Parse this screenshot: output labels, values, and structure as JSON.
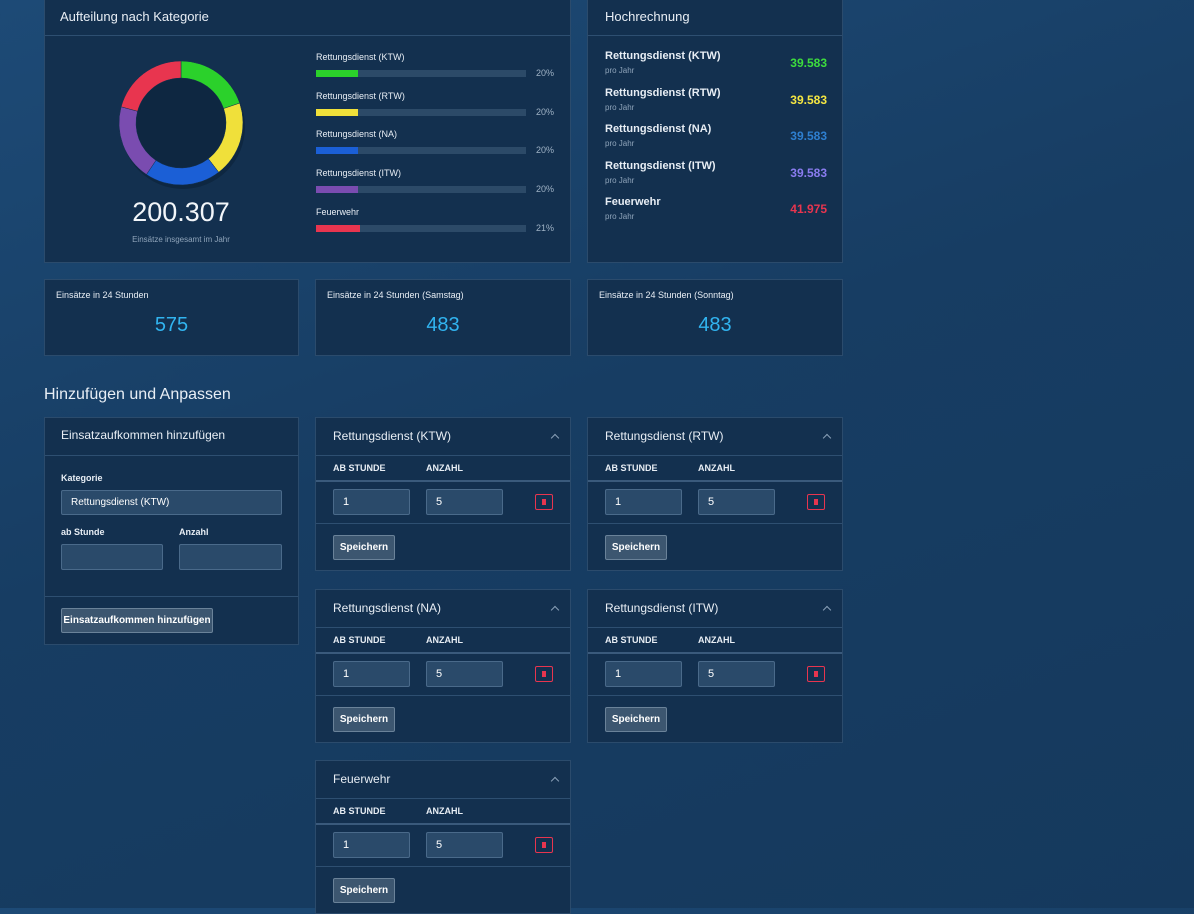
{
  "category_panel": {
    "title": "Aufteilung nach Kategorie",
    "total": "200.307",
    "total_caption": "Einsätze insgesamt im Jahr",
    "items": [
      {
        "name": "Rettungsdienst (KTW)",
        "percent": 20,
        "percent_label": "20%",
        "color": "#2bd12b"
      },
      {
        "name": "Rettungsdienst (RTW)",
        "percent": 20,
        "percent_label": "20%",
        "color": "#f0e03a"
      },
      {
        "name": "Rettungsdienst (NA)",
        "percent": 20,
        "percent_label": "20%",
        "color": "#1b5fd6"
      },
      {
        "name": "Rettungsdienst (ITW)",
        "percent": 20,
        "percent_label": "20%",
        "color": "#7a4cb0"
      },
      {
        "name": "Feuerwehr",
        "percent": 21,
        "percent_label": "21%",
        "color": "#e8354f"
      }
    ]
  },
  "projection_panel": {
    "title": "Hochrechnung",
    "rows": [
      {
        "name": "Rettungsdienst (KTW)",
        "sub": "pro Jahr",
        "value": "39.583",
        "color": "#3ddc3d"
      },
      {
        "name": "Rettungsdienst (RTW)",
        "sub": "pro Jahr",
        "value": "39.583",
        "color": "#f5e642"
      },
      {
        "name": "Rettungsdienst (NA)",
        "sub": "pro Jahr",
        "value": "39.583",
        "color": "#2e7fd0"
      },
      {
        "name": "Rettungsdienst (ITW)",
        "sub": "pro Jahr",
        "value": "39.583",
        "color": "#8a7cf0"
      },
      {
        "name": "Feuerwehr",
        "sub": "pro Jahr",
        "value": "41.975",
        "color": "#e8354f"
      }
    ]
  },
  "stats": [
    {
      "label": "Einsätze in 24 Stunden",
      "value": 575
    },
    {
      "label": "Einsätze in 24 Stunden (Samstag)",
      "value": 483
    },
    {
      "label": "Einsätze in 24 Stunden (Sonntag)",
      "value": 483
    }
  ],
  "section_title": "Hinzufügen und Anpassen",
  "add_form": {
    "title": "Einsatzaufkommen hinzufügen",
    "category_label": "Kategorie",
    "category_value": "Rettungsdienst (KTW)",
    "hour_label": "ab Stunde",
    "count_label": "Anzahl",
    "button": "Einsatzaufkommen hinzufügen"
  },
  "cards": [
    {
      "title": "Rettungsdienst (KTW)",
      "col_hour": "AB STUNDE",
      "col_count": "ANZAHL",
      "hour": "1",
      "count": "5",
      "button": "Speichern"
    },
    {
      "title": "Rettungsdienst (RTW)",
      "col_hour": "AB STUNDE",
      "col_count": "ANZAHL",
      "hour": "1",
      "count": "5",
      "button": "Speichern"
    },
    {
      "title": "Rettungsdienst (NA)",
      "col_hour": "AB STUNDE",
      "col_count": "ANZAHL",
      "hour": "1",
      "count": "5",
      "button": "Speichern"
    },
    {
      "title": "Rettungsdienst (ITW)",
      "col_hour": "AB STUNDE",
      "col_count": "ANZAHL",
      "hour": "1",
      "count": "5",
      "button": "Speichern"
    },
    {
      "title": "Feuerwehr",
      "col_hour": "AB STUNDE",
      "col_count": "ANZAHL",
      "hour": "1",
      "count": "5",
      "button": "Speichern"
    }
  ]
}
